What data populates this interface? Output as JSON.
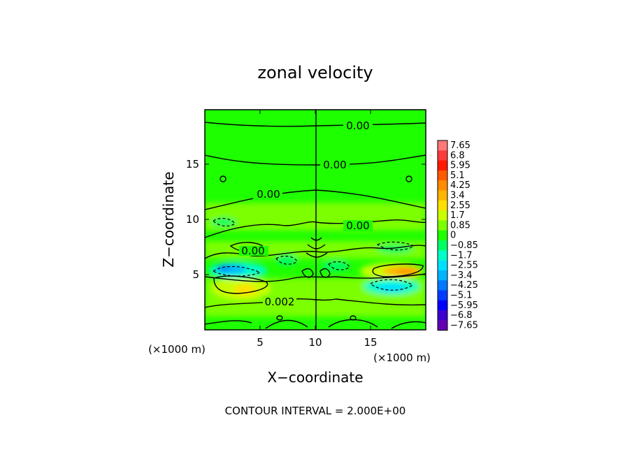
{
  "chart_data": {
    "type": "heatmap",
    "title": "zonal velocity",
    "xlabel": "X−coordinate",
    "ylabel": "Z−coordinate",
    "x_unit": "(×1000 m)",
    "z_unit": "(×1000 m)",
    "xlim": [
      0,
      20
    ],
    "ylim": [
      0,
      20
    ],
    "x_ticks": [
      "5",
      "10",
      "15"
    ],
    "y_ticks": [
      "5",
      "10",
      "15"
    ],
    "contour_note": "CONTOUR INTERVAL = 2.000E+00",
    "contour_labels": [
      "0.00",
      "0.00",
      "0.00",
      "0.00",
      "0.00",
      "0.002"
    ],
    "colorbar": {
      "levels": [
        "7.65",
        "6.8",
        "5.95",
        "5.1",
        "4.25",
        "3.4",
        "2.55",
        "1.7",
        "0.85",
        "0",
        "−0.85",
        "−1.7",
        "−2.55",
        "−3.4",
        "−4.25",
        "−5.1",
        "−5.95",
        "−6.8",
        "−7.65"
      ],
      "colors": [
        "#ff7878",
        "#ff3c3c",
        "#ff1a00",
        "#ff5a00",
        "#ff8c00",
        "#ffb400",
        "#ffe000",
        "#c8ff00",
        "#7cff00",
        "#1eff00",
        "#00ff64",
        "#00ffc8",
        "#00e0ff",
        "#00b4ff",
        "#0078ff",
        "#003cff",
        "#0000ff",
        "#3c00d0",
        "#6400b4"
      ]
    }
  }
}
